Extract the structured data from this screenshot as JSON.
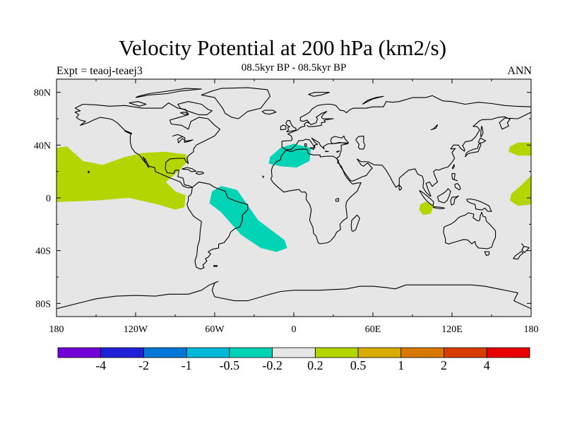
{
  "header": {
    "title": "Velocity Potential at 200 hPa (km2/s)",
    "subtitle_center": "08.5kyr BP - 08.5kyr BP",
    "subtitle_left": "Expt = teaoj-teaej3",
    "subtitle_right": "ANN"
  },
  "map": {
    "projection": "cylindrical-equidistant",
    "lon_range": [
      -180,
      180
    ],
    "lat_range": [
      -90,
      90
    ],
    "background_color": "#e6e6e6",
    "coastline_color": "#000000",
    "lon_ticks": [
      {
        "value": -180,
        "label": "180"
      },
      {
        "value": -120,
        "label": "120W"
      },
      {
        "value": -60,
        "label": "60W"
      },
      {
        "value": 0,
        "label": "0"
      },
      {
        "value": 60,
        "label": "60E"
      },
      {
        "value": 120,
        "label": "120E"
      },
      {
        "value": 180,
        "label": "180"
      }
    ],
    "lat_ticks": [
      {
        "value": 80,
        "label": "80N"
      },
      {
        "value": 40,
        "label": "40N"
      },
      {
        "value": 0,
        "label": "0"
      },
      {
        "value": -40,
        "label": "40S"
      },
      {
        "value": -80,
        "label": "80S"
      }
    ],
    "anomaly_regions": [
      {
        "name": "east-pacific-positive",
        "color": "#b4d600",
        "points": [
          [
            -180,
            38
          ],
          [
            -172,
            39
          ],
          [
            -160,
            28
          ],
          [
            -145,
            25
          ],
          [
            -128,
            31
          ],
          [
            -115,
            34
          ],
          [
            -98,
            35
          ],
          [
            -82,
            33
          ],
          [
            -80,
            28
          ],
          [
            -90,
            18
          ],
          [
            -97,
            12
          ],
          [
            -90,
            5
          ],
          [
            -82,
            2
          ],
          [
            -83,
            -7
          ],
          [
            -90,
            -9
          ],
          [
            -103,
            -5
          ],
          [
            -125,
            0
          ],
          [
            -150,
            -2
          ],
          [
            -175,
            -3
          ],
          [
            -180,
            -3
          ]
        ]
      },
      {
        "name": "dateline-positive-north",
        "color": "#b4d600",
        "points": [
          [
            164,
            39
          ],
          [
            170,
            42
          ],
          [
            180,
            42
          ],
          [
            180,
            32
          ],
          [
            170,
            32
          ],
          [
            163,
            35
          ]
        ]
      },
      {
        "name": "dateline-positive-south",
        "color": "#b4d600",
        "points": [
          [
            165,
            3
          ],
          [
            173,
            10
          ],
          [
            180,
            17
          ],
          [
            180,
            -5
          ],
          [
            170,
            -6
          ],
          [
            164,
            -2
          ]
        ]
      },
      {
        "name": "indonesia-positive",
        "color": "#b4d600",
        "points": [
          [
            96,
            -5
          ],
          [
            100,
            -3
          ],
          [
            106,
            -6
          ],
          [
            104,
            -12
          ],
          [
            98,
            -13
          ],
          [
            95,
            -9
          ]
        ]
      },
      {
        "name": "south-atlantic-negative",
        "color": "#00d4b4",
        "points": [
          [
            -55,
            9
          ],
          [
            -43,
            6
          ],
          [
            -27,
            -17
          ],
          [
            -7,
            -32
          ],
          [
            -5,
            -38
          ],
          [
            -13,
            -41
          ],
          [
            -25,
            -38
          ],
          [
            -40,
            -28
          ],
          [
            -55,
            -11
          ],
          [
            -64,
            -4
          ],
          [
            -62,
            5
          ]
        ]
      },
      {
        "name": "north-africa-negative",
        "color": "#00d4b4",
        "points": [
          [
            -18,
            31
          ],
          [
            -10,
            38
          ],
          [
            0,
            41
          ],
          [
            13,
            38
          ],
          [
            12,
            28
          ],
          [
            2,
            23
          ],
          [
            -10,
            24
          ],
          [
            -19,
            26
          ]
        ]
      }
    ]
  },
  "colorbar": {
    "colors": [
      "#7400d8",
      "#2020d8",
      "#0078d8",
      "#00b8d8",
      "#00d4b4",
      "#e6e6e6",
      "#b4d600",
      "#d8ac00",
      "#d87800",
      "#d83c00",
      "#e80000"
    ],
    "labels": [
      "-4",
      "-2",
      "-1",
      "-0.5",
      "-0.2",
      "0.2",
      "0.5",
      "1",
      "2",
      "4"
    ]
  }
}
